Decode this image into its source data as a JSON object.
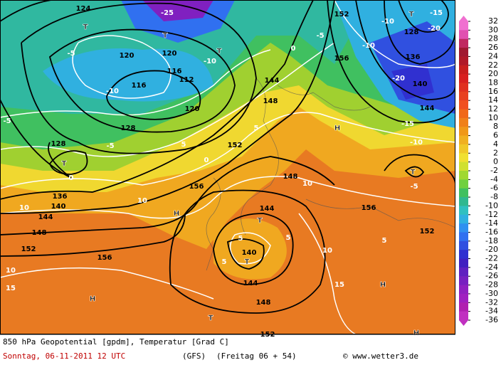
{
  "map": {
    "labels": [
      "T",
      "T",
      "T",
      "T",
      "T",
      "T",
      "T",
      "T",
      "T",
      "H",
      "H",
      "H",
      "H",
      "H",
      "144",
      "144",
      "144",
      "144",
      "144",
      "152",
      "152",
      "152",
      "152",
      "152",
      "148",
      "148",
      "148",
      "148",
      "136",
      "136",
      "140",
      "140",
      "140",
      "128",
      "128",
      "128",
      "120",
      "120",
      "120",
      "116",
      "116",
      "112",
      "124",
      "156",
      "156",
      "156",
      "156",
      "-10",
      "-10",
      "-10",
      "-10",
      "-10",
      "-15",
      "-15",
      "-20",
      "-20",
      "-25",
      "-5",
      "-5",
      "-5",
      "-5",
      "-5",
      "0",
      "0",
      "0",
      "5",
      "5",
      "5",
      "5",
      "5",
      "5",
      "10",
      "10",
      "10",
      "10",
      "10",
      "15",
      "15"
    ]
  },
  "colorbar": {
    "labels": [
      32,
      30,
      28,
      26,
      24,
      22,
      20,
      18,
      16,
      14,
      12,
      10,
      8,
      6,
      4,
      2,
      0,
      -2,
      -4,
      -6,
      -8,
      -10,
      -12,
      -14,
      -16,
      -18,
      -20,
      -22,
      -24,
      -26,
      -28,
      -30,
      -32,
      -34,
      -36
    ],
    "colors": [
      "#f070d0",
      "#e050b0",
      "#c02860",
      "#a01830",
      "#b01828",
      "#c81e1e",
      "#d82020",
      "#e03020",
      "#e84020",
      "#f05020",
      "#f06818",
      "#f08018",
      "#f09818",
      "#f0b020",
      "#f0c828",
      "#f0e030",
      "#d0e030",
      "#a0d830",
      "#70d040",
      "#40c060",
      "#30b890",
      "#30c0c0",
      "#30b0e0",
      "#3090f0",
      "#3070f0",
      "#3050e0",
      "#3030d0",
      "#4020c0",
      "#6020c0",
      "#7820c0",
      "#9020c0",
      "#a020c0",
      "#b020b0",
      "#c030c0"
    ]
  },
  "footer": {
    "description": "850 hPa Geopotential [gpdm], Temperatur [Grad C]",
    "date": "Sonntag, 06-11-2011  12 UTC",
    "model": "(GFS)",
    "forecast": "(Freitag 06 + 54)",
    "copyright": "© www.wetter3.de"
  }
}
